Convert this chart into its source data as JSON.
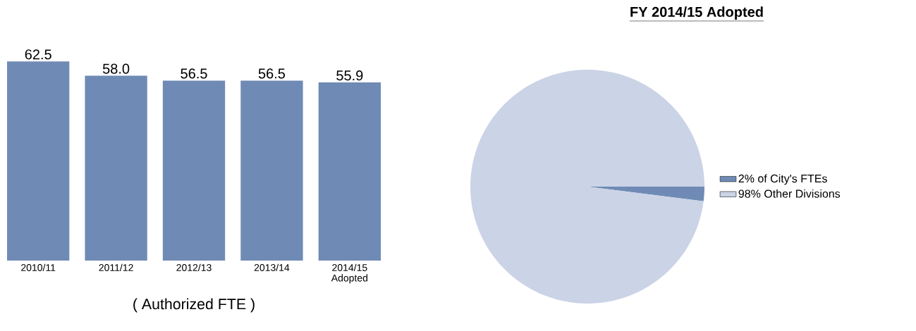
{
  "chart_data": [
    {
      "type": "bar",
      "categories": [
        "2010/11",
        "2011/12",
        "2012/13",
        "2013/14",
        "2014/15 Adopted"
      ],
      "values": [
        62.5,
        58,
        56.5,
        56.5,
        55.9
      ],
      "value_labels": [
        "62.5",
        "58.0",
        "56.5",
        "56.5",
        "55.9"
      ],
      "color": "#6f8bb5",
      "xlabel": "( Authorized FTE )"
    },
    {
      "type": "pie",
      "title": "FY 2014/15 Adopted",
      "categories": [
        "2% of City's FTEs",
        "98% Other Divisions"
      ],
      "values": [
        2,
        98
      ],
      "colors": [
        "#6f8bb5",
        "#cbd3e6"
      ],
      "legend": "right"
    }
  ]
}
